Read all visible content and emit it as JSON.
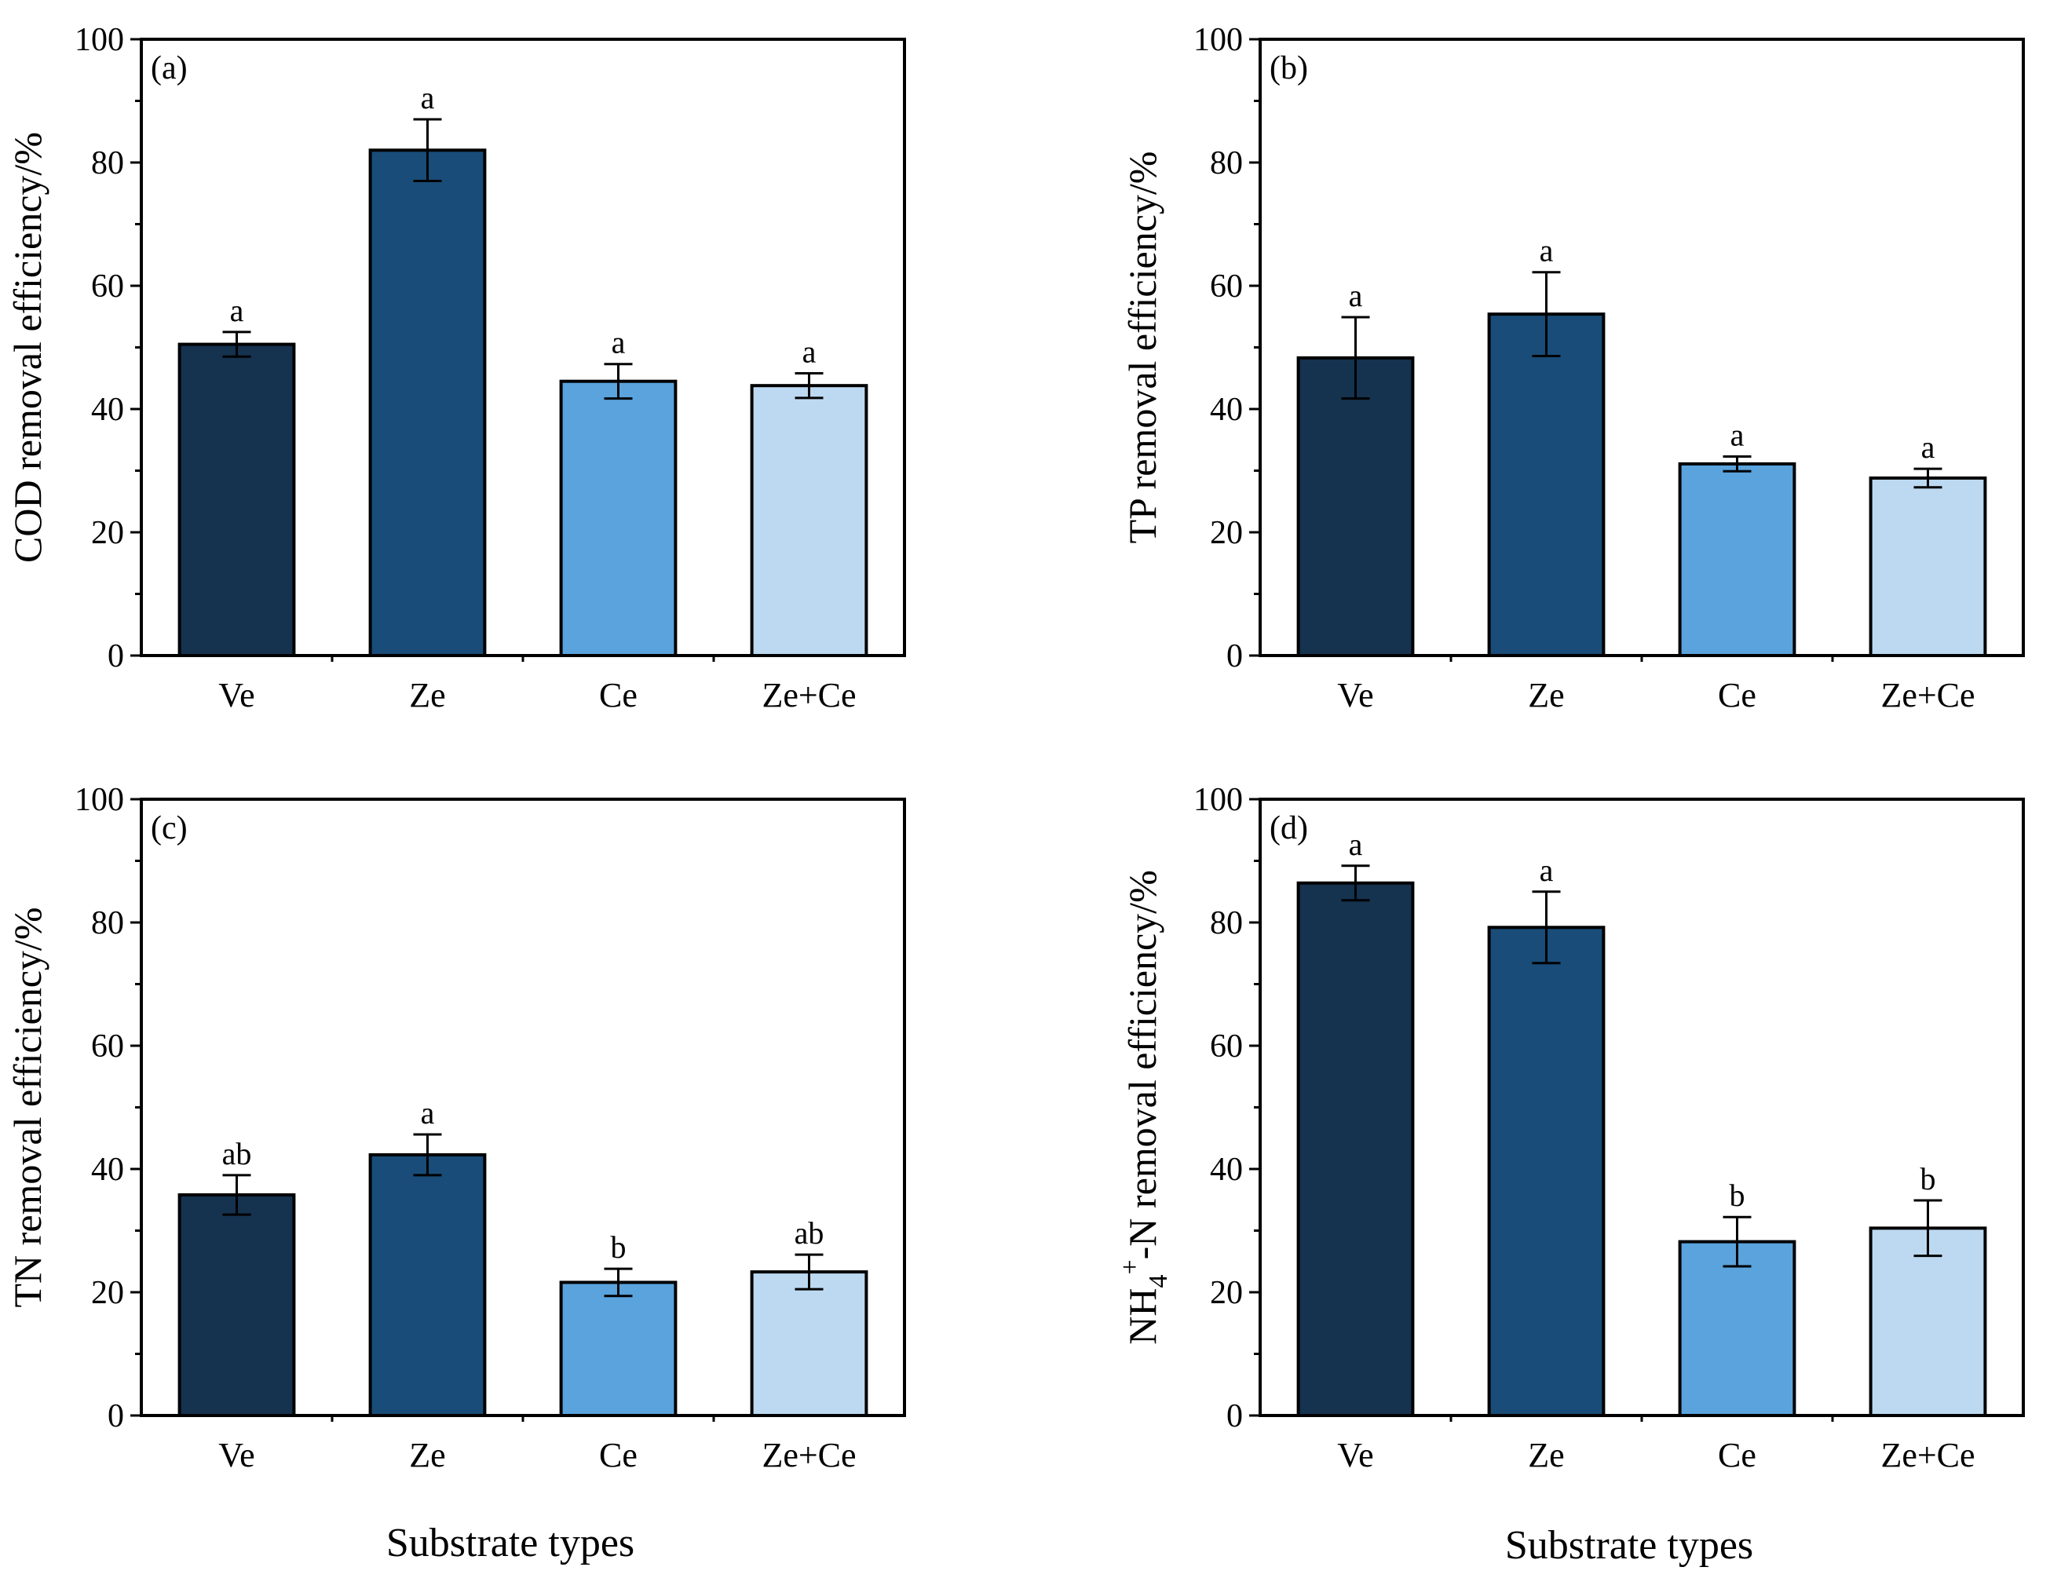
{
  "colors": {
    "Ve": "#15324f",
    "Ze": "#194c78",
    "Ce": "#5aa3dd",
    "Ze+Ce": "#bcd9f1",
    "outline": "#000000"
  },
  "x_title": "Substrate types",
  "chart_data": [
    {
      "type": "bar",
      "panel": "(a)",
      "categories": [
        "Ve",
        "Ze",
        "Ce",
        "Ze+Ce"
      ],
      "values": [
        50.5,
        82,
        44.5,
        43.8
      ],
      "errors": [
        2.0,
        5.0,
        2.8,
        2.0
      ],
      "significance": [
        "a",
        "a",
        "a",
        "a"
      ],
      "ylabel": "COD removal efficiency/%",
      "ylim": [
        0,
        100
      ],
      "yticks": [
        0,
        20,
        40,
        60,
        80,
        100
      ],
      "xlabel": "",
      "legend": "none"
    },
    {
      "type": "bar",
      "panel": "(b)",
      "categories": [
        "Ve",
        "Ze",
        "Ce",
        "Ze+Ce"
      ],
      "values": [
        48.3,
        55.4,
        31.1,
        28.8
      ],
      "errors": [
        6.6,
        6.8,
        1.2,
        1.5
      ],
      "significance": [
        "a",
        "a",
        "a",
        "a"
      ],
      "ylabel": "TP removal efficiency/%",
      "ylim": [
        0,
        100
      ],
      "yticks": [
        0,
        20,
        40,
        60,
        80,
        100
      ],
      "xlabel": "",
      "legend": "none"
    },
    {
      "type": "bar",
      "panel": "(c)",
      "categories": [
        "Ve",
        "Ze",
        "Ce",
        "Ze+Ce"
      ],
      "values": [
        35.8,
        42.3,
        21.6,
        23.3
      ],
      "errors": [
        3.2,
        3.3,
        2.2,
        2.8
      ],
      "significance": [
        "ab",
        "a",
        "b",
        "ab"
      ],
      "ylabel": "TN removal efficiency/%",
      "ylim": [
        0,
        100
      ],
      "yticks": [
        0,
        20,
        40,
        60,
        80,
        100
      ],
      "xlabel": "Substrate types",
      "legend": "none"
    },
    {
      "type": "bar",
      "panel": "(d)",
      "categories": [
        "Ve",
        "Ze",
        "Ce",
        "Ze+Ce"
      ],
      "values": [
        86.4,
        79.2,
        28.2,
        30.4
      ],
      "errors": [
        2.8,
        5.8,
        4.0,
        4.5
      ],
      "significance": [
        "a",
        "a",
        "b",
        "b"
      ],
      "ylabel_parts": [
        "NH",
        "4",
        "+",
        "-N removal efficiency/%"
      ],
      "ylim": [
        0,
        100
      ],
      "yticks": [
        0,
        20,
        40,
        60,
        80,
        100
      ],
      "xlabel": "Substrate types",
      "legend": "none"
    }
  ]
}
